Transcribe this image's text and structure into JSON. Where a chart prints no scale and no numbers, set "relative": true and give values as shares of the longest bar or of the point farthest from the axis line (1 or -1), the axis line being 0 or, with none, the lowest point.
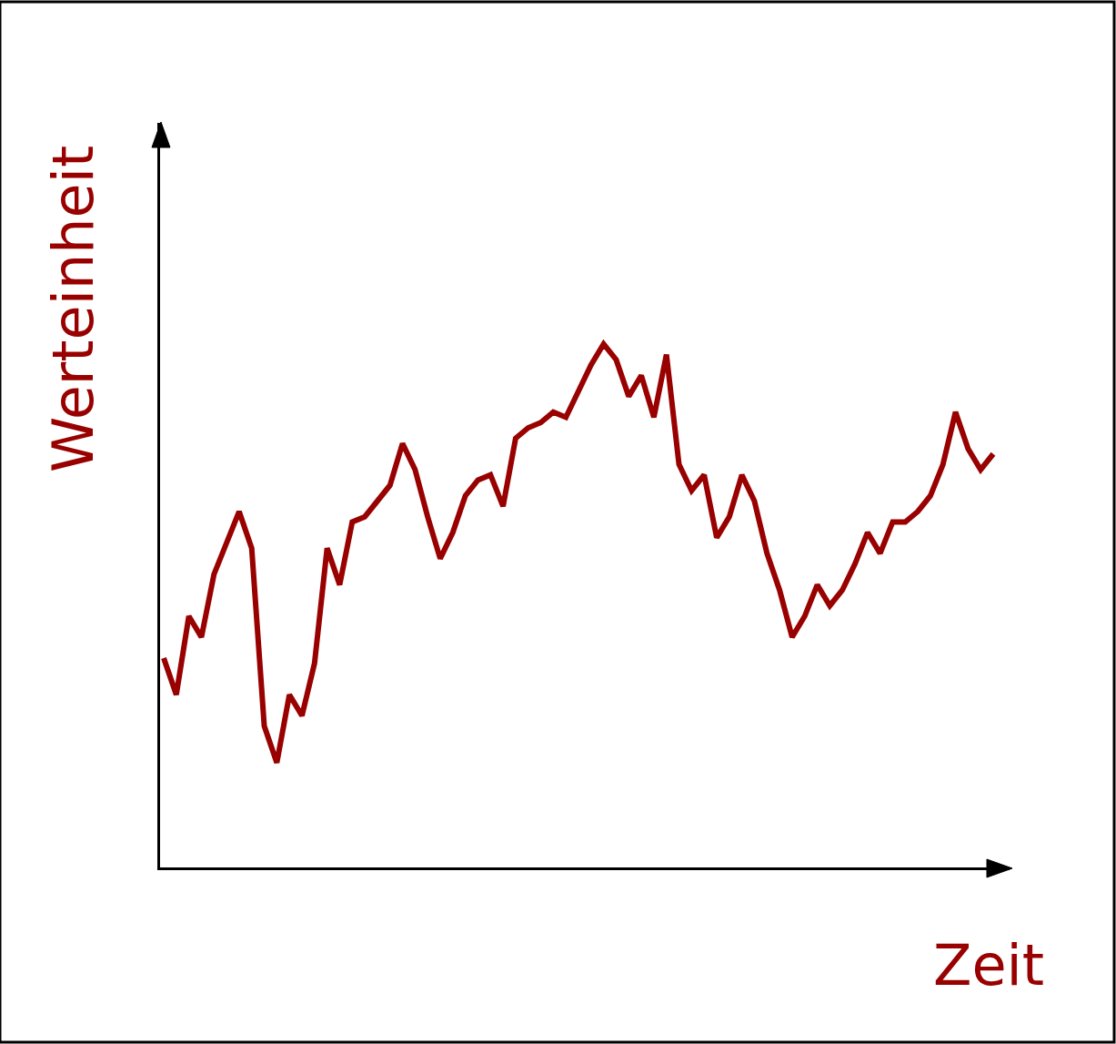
{
  "chart_data": {
    "type": "line",
    "relative": true,
    "xlabel": "Zeit",
    "ylabel": "Werteinheit",
    "categories": [
      null,
      null,
      null,
      null,
      null,
      null,
      null,
      null,
      null,
      null,
      null,
      null,
      null,
      null,
      null,
      null,
      null,
      null,
      null,
      null,
      null,
      null,
      null,
      null,
      null,
      null,
      null,
      null,
      null,
      null,
      null,
      null,
      null,
      null,
      null,
      null,
      null,
      null,
      null,
      null,
      null,
      null,
      null,
      null,
      null,
      null,
      null,
      null,
      null,
      null,
      null,
      null,
      null,
      null,
      null,
      null,
      null,
      null,
      null,
      null,
      null,
      null,
      null,
      null,
      null,
      null,
      null
    ],
    "series": [
      {
        "color": "#990000",
        "values": [
          0.4,
          0.33,
          0.48,
          0.44,
          0.56,
          0.62,
          0.68,
          0.61,
          0.27,
          0.2,
          0.33,
          0.29,
          0.39,
          0.61,
          0.54,
          0.66,
          0.67,
          0.7,
          0.73,
          0.81,
          0.76,
          0.67,
          0.59,
          0.64,
          0.71,
          0.74,
          0.75,
          0.69,
          0.82,
          0.84,
          0.85,
          0.87,
          0.86,
          0.91,
          0.96,
          1,
          0.97,
          0.9,
          0.94,
          0.86,
          0.98,
          0.77,
          0.72,
          0.75,
          0.63,
          0.67,
          0.75,
          0.7,
          0.6,
          0.53,
          0.44,
          0.48,
          0.54,
          0.5,
          0.53,
          0.58,
          0.64,
          0.6,
          0.66,
          0.66,
          0.68,
          0.71,
          0.77,
          0.87,
          0.8,
          0.76,
          0.79
        ]
      }
    ],
    "marker": "none",
    "line_style": "solid"
  }
}
